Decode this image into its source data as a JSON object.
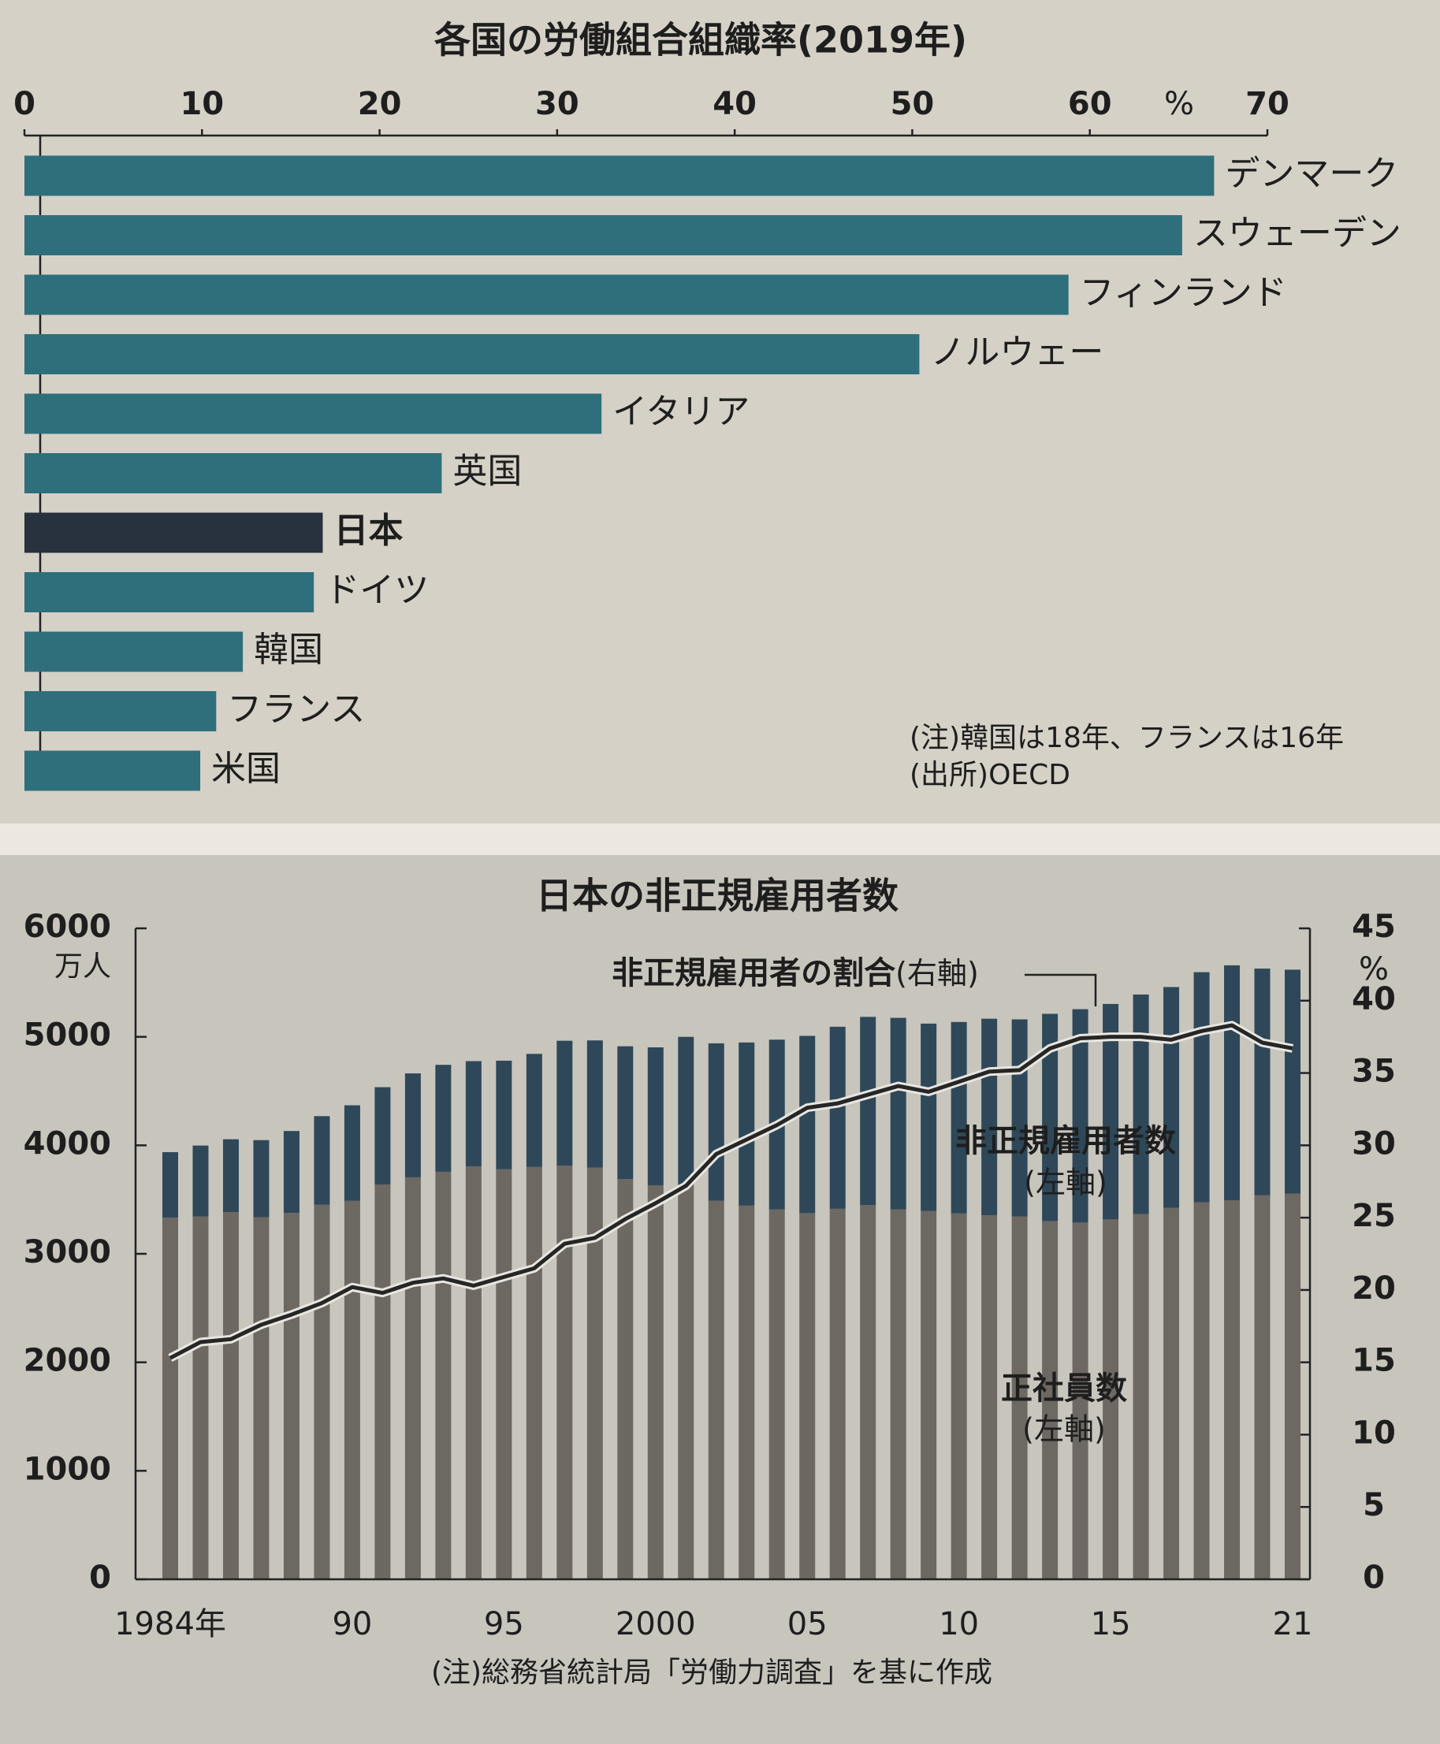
{
  "chart_data": [
    {
      "type": "hbar",
      "title": "各国の労働組合組織率(2019年)",
      "unit": "%",
      "categories": [
        "デンマーク",
        "スウェーデン",
        "フィンランド",
        "ノルウェー",
        "イタリア",
        "英国",
        "日本",
        "ドイツ",
        "韓国",
        "フランス",
        "米国"
      ],
      "values": [
        67.0,
        65.2,
        58.8,
        50.4,
        32.5,
        23.5,
        16.8,
        16.3,
        12.3,
        10.8,
        9.9
      ],
      "colors": [
        "#2f6f7b",
        "#2f6f7b",
        "#2f6f7b",
        "#2f6f7b",
        "#2f6f7b",
        "#2f6f7b",
        "#27323e",
        "#2f6f7b",
        "#2f6f7b",
        "#2f6f7b",
        "#2f6f7b"
      ],
      "xlim": [
        0,
        70
      ],
      "xticks": [
        0,
        10,
        20,
        30,
        40,
        50,
        60,
        70
      ],
      "notes": [
        "(注)韓国は18年、フランスは16年",
        "(出所)OECD"
      ]
    },
    {
      "type": "stacked_bar_line",
      "title": "日本の非正規雇用者数",
      "yunit": "万人",
      "y2unit": "%",
      "categories": [
        "1984年",
        null,
        null,
        null,
        null,
        null,
        "90",
        null,
        null,
        null,
        null,
        "95",
        null,
        null,
        null,
        null,
        "2000",
        null,
        null,
        null,
        null,
        "05",
        null,
        null,
        null,
        null,
        "10",
        null,
        null,
        null,
        null,
        "15",
        null,
        null,
        null,
        null,
        null,
        "21"
      ],
      "series": [
        {
          "name": "正社員数",
          "axis_label": "(左軸)",
          "color": "#6d6862",
          "axis": "y",
          "values": [
            3333,
            3343,
            3383,
            3337,
            3377,
            3452,
            3488,
            3639,
            3705,
            3756,
            3805,
            3779,
            3800,
            3812,
            3794,
            3688,
            3630,
            3640,
            3489,
            3444,
            3410,
            3375,
            3415,
            3449,
            3410,
            3395,
            3374,
            3355,
            3345,
            3302,
            3288,
            3317,
            3367,
            3423,
            3476,
            3494,
            3539,
            3555
          ]
        },
        {
          "name": "非正規雇用者数",
          "axis_label": "(左軸)",
          "color": "#2e4859",
          "axis": "y",
          "values": [
            604,
            655,
            673,
            711,
            755,
            817,
            881,
            897,
            958,
            986,
            971,
            1001,
            1043,
            1152,
            1173,
            1225,
            1273,
            1360,
            1451,
            1504,
            1564,
            1634,
            1678,
            1735,
            1765,
            1727,
            1763,
            1812,
            1816,
            1910,
            1967,
            1986,
            2023,
            2036,
            2120,
            2165,
            2090,
            2064
          ]
        },
        {
          "name": "非正規雇用者の割合",
          "axis_label": "(右軸)",
          "color": "#262626",
          "axis": "y2",
          "values": [
            15.3,
            16.4,
            16.6,
            17.6,
            18.3,
            19.1,
            20.2,
            19.8,
            20.5,
            20.8,
            20.3,
            20.9,
            21.5,
            23.2,
            23.6,
            24.9,
            26.0,
            27.2,
            29.4,
            30.4,
            31.4,
            32.6,
            32.9,
            33.5,
            34.1,
            33.7,
            34.4,
            35.1,
            35.2,
            36.7,
            37.4,
            37.5,
            37.5,
            37.3,
            37.9,
            38.3,
            37.1,
            36.7
          ]
        }
      ],
      "ylim": [
        0,
        6000
      ],
      "yticks": [
        0,
        1000,
        2000,
        3000,
        4000,
        5000,
        6000
      ],
      "y2lim": [
        0,
        45
      ],
      "y2ticks": [
        0,
        5,
        10,
        15,
        20,
        25,
        30,
        35,
        40,
        45
      ],
      "notes": [
        "(注)総務省統計局「労働力調査」を基に作成"
      ]
    }
  ]
}
